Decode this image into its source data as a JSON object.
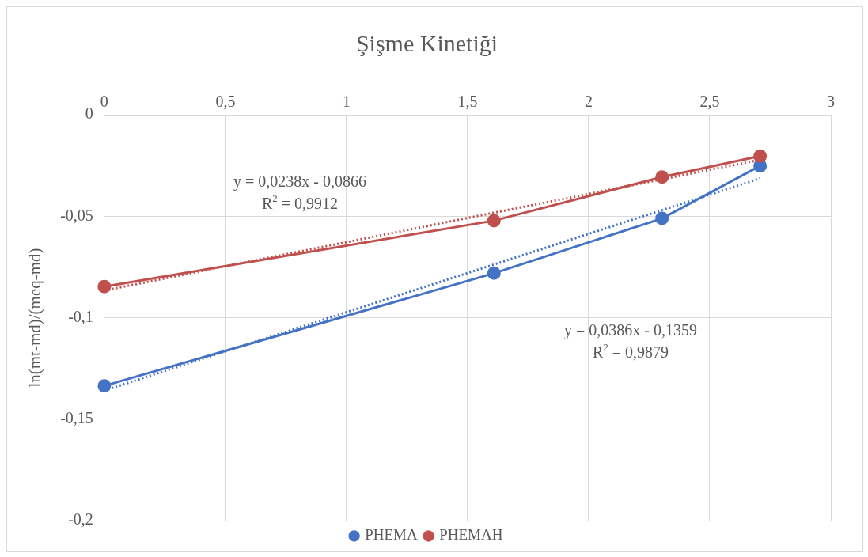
{
  "chart_data": {
    "type": "line",
    "title": "Şişme Kinetiği",
    "ylabel": "ln(mt-md)/(meq-md)",
    "xlim": [
      0,
      3
    ],
    "xticks": [
      0,
      {
        "value": 0.5,
        "label": "0,5"
      },
      1,
      {
        "value": 1.5,
        "label": "1,5"
      },
      2,
      {
        "value": 2.5,
        "label": "2,5"
      },
      3
    ],
    "ylim": [
      -0.2,
      0
    ],
    "yticks": [
      {
        "value": -0.2,
        "label": "-0,2"
      },
      {
        "value": -0.15,
        "label": "-0,15"
      },
      {
        "value": -0.1,
        "label": "-0,1"
      },
      {
        "value": -0.05,
        "label": "-0,05"
      },
      0
    ],
    "x": [
      0,
      1.609,
      2.303,
      2.708
    ],
    "series": [
      {
        "name": "PHEMA",
        "color": "#4472c4",
        "values": [
          -0.1336,
          -0.0781,
          -0.0511,
          -0.0252
        ],
        "marker": "circle",
        "line_style": "solid"
      },
      {
        "name": "PHEMAH",
        "color": "#c0504d",
        "values": [
          -0.0847,
          -0.0522,
          -0.0307,
          -0.0204
        ],
        "marker": "circle",
        "line_style": "solid"
      },
      {
        "color": "#4472c4",
        "values": [
          -0.1359,
          -0.0738,
          -0.047,
          -0.0314
        ],
        "marker": "none",
        "line_style": "dotted"
      },
      {
        "color": "#c0504d",
        "values": [
          -0.0866,
          -0.0483,
          -0.0318,
          -0.0222
        ],
        "marker": "none",
        "line_style": "dotted"
      }
    ],
    "annotations": [
      "y = 0,0238x - 0,0866",
      "R$^{2}$ = 0,9912",
      "y = 0,0386x - 0,1359",
      "R$^{2}$ = 0,9879"
    ],
    "grid": true,
    "legend": "bottom"
  }
}
